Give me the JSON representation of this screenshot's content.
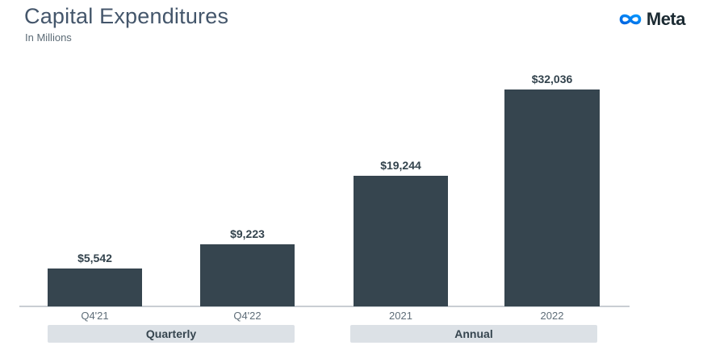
{
  "header": {
    "title": "Capital Expenditures",
    "subtitle": "In Millions"
  },
  "brand": {
    "name": "Meta",
    "infinity_gradient": [
      "#0064E0",
      "#0596FF"
    ],
    "wordmark_color": "#1C2B33"
  },
  "chart_data": {
    "type": "bar",
    "title": "Capital Expenditures",
    "subtitle": "In Millions",
    "unit": "USD millions",
    "groups": [
      {
        "label": "Quarterly",
        "categories": [
          "Q4'21",
          "Q4'22"
        ],
        "values": [
          5542,
          9223
        ],
        "value_labels": [
          "$5,542",
          "$9,223"
        ]
      },
      {
        "label": "Annual",
        "categories": [
          "2021",
          "2022"
        ],
        "values": [
          19244,
          32036
        ],
        "value_labels": [
          "$19,244",
          "$32,036"
        ]
      }
    ],
    "ylim": [
      0,
      32036
    ],
    "grid": false,
    "legend": false,
    "colors": {
      "bar": "#36454F",
      "value_label": "#33434D",
      "tick_label": "#5E6D78",
      "band_bg": "#DCE1E6",
      "band_text": "#36454F",
      "axis_line": "#C9CED3",
      "title": "#44566B",
      "subtitle": "#5C6B76"
    }
  }
}
